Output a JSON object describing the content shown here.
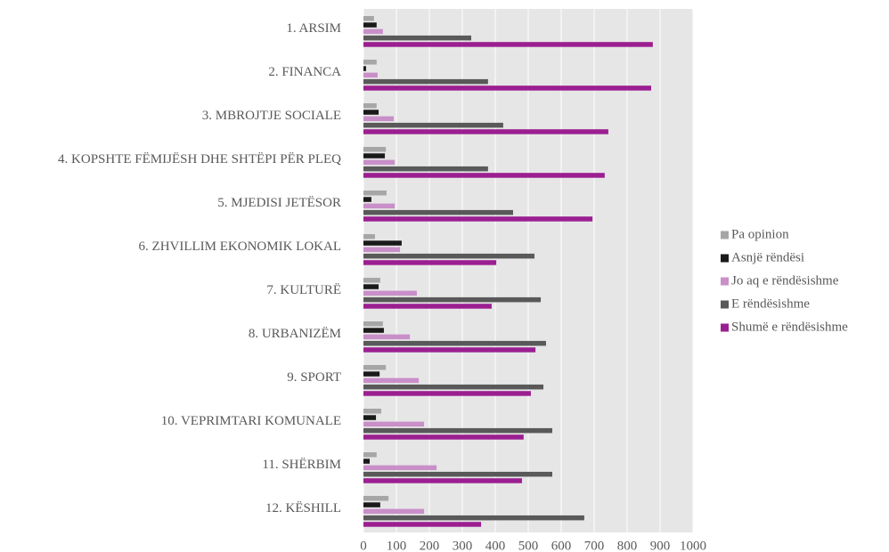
{
  "chart_data": {
    "type": "hbar",
    "categories": [
      "1. ARSIM",
      "2. FINANCA",
      "3. MBROJTJE SOCIALE",
      "4. KOPSHTE FËMIJËSH DHE SHTËPI PËR PLEQ",
      "5. MJEDISI JETËSOR",
      "6. ZHVILLIM EKONOMIK LOKAL",
      "7. KULTURË",
      "8. URBANIZËM",
      "9. SPORT",
      "10. VEPRIMTARI KOMUNALE",
      "11. SHËRBIM",
      "12. KËSHILL"
    ],
    "series": [
      {
        "name": "Pa opinion",
        "color": "#a6a6a6",
        "values": [
          32,
          40,
          40,
          68,
          70,
          35,
          51,
          59,
          68,
          54,
          40,
          76
        ]
      },
      {
        "name": "Asnjë rëndësi",
        "color": "#1a1a1a",
        "values": [
          40,
          8,
          46,
          65,
          24,
          116,
          46,
          62,
          49,
          38,
          19,
          51
        ]
      },
      {
        "name": "Jo aq e rëndësishme",
        "color": "#c98fc9",
        "values": [
          59,
          43,
          92,
          95,
          95,
          111,
          162,
          141,
          168,
          184,
          222,
          184
        ]
      },
      {
        "name": "E rëndësishme",
        "color": "#595959",
        "values": [
          327,
          378,
          424,
          378,
          454,
          519,
          538,
          554,
          546,
          573,
          573,
          670
        ]
      },
      {
        "name": "Shumë e rëndësishme",
        "color": "#9b1f91",
        "values": [
          878,
          873,
          743,
          732,
          695,
          403,
          389,
          522,
          508,
          486,
          481,
          357
        ]
      }
    ],
    "xlim": [
      0,
      1000
    ],
    "xticks": [
      0,
      100,
      200,
      300,
      400,
      500,
      600,
      700,
      800,
      900,
      1000
    ],
    "grid": true,
    "legend": "right"
  }
}
